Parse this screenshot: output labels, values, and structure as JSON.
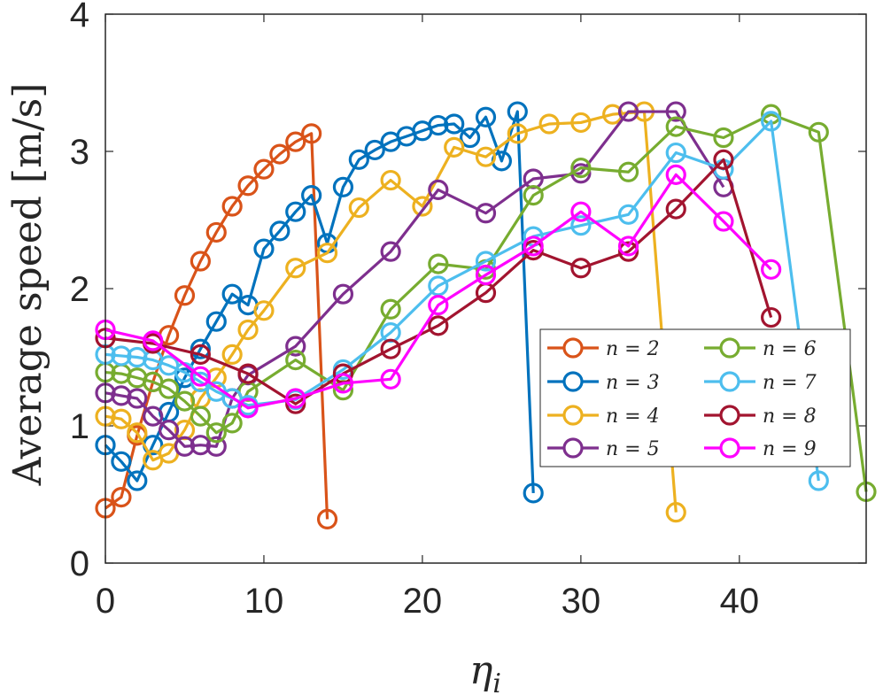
{
  "chart_data": {
    "type": "line",
    "title": "",
    "xlabel": "η",
    "xlabel_sub": "i",
    "ylabel": "Average speed [m/s]",
    "xlim": [
      0,
      48
    ],
    "ylim": [
      0,
      4
    ],
    "xticks": [
      "0",
      "10",
      "20",
      "30",
      "40"
    ],
    "yticks": [
      "0",
      "1",
      "2",
      "3",
      "4"
    ],
    "legend_position": "lower-right",
    "series": [
      {
        "name": "n = 2",
        "legend_label": "n = 2",
        "color": "#D95319",
        "x": [
          0,
          1,
          2,
          3,
          4,
          5,
          6,
          7,
          8,
          9,
          10,
          11,
          12,
          13,
          14
        ],
        "y": [
          0.4,
          0.48,
          0.93,
          1.32,
          1.66,
          1.95,
          2.2,
          2.41,
          2.6,
          2.75,
          2.87,
          2.98,
          3.07,
          3.13,
          0.32
        ]
      },
      {
        "name": "n = 3",
        "legend_label": "n = 3",
        "color": "#0072BD",
        "x": [
          0,
          1,
          2,
          3,
          4,
          5,
          6,
          7,
          8,
          9,
          10,
          11,
          12,
          13,
          14,
          15,
          16,
          17,
          18,
          19,
          20,
          21,
          22,
          23,
          24,
          25,
          26,
          27
        ],
        "y": [
          0.86,
          0.74,
          0.6,
          0.86,
          1.1,
          1.35,
          1.56,
          1.76,
          1.96,
          1.88,
          2.29,
          2.42,
          2.56,
          2.68,
          2.33,
          2.74,
          2.94,
          3.01,
          3.07,
          3.11,
          3.15,
          3.19,
          3.2,
          3.1,
          3.25,
          2.93,
          3.29,
          0.51
        ]
      },
      {
        "name": "n = 4",
        "legend_label": "n = 4",
        "color": "#EDB120",
        "x": [
          0,
          1,
          2,
          3,
          4,
          5,
          6,
          7,
          8,
          9,
          10,
          12,
          14,
          16,
          18,
          20,
          22,
          24,
          26,
          28,
          30,
          32,
          34,
          36
        ],
        "y": [
          1.07,
          1.05,
          0.95,
          0.75,
          0.8,
          0.97,
          1.2,
          1.35,
          1.52,
          1.7,
          1.84,
          2.15,
          2.26,
          2.59,
          2.79,
          2.6,
          3.03,
          2.96,
          3.13,
          3.2,
          3.21,
          3.27,
          3.29,
          0.37
        ]
      },
      {
        "name": "n = 5",
        "legend_label": "n = 5",
        "color": "#7E2F8E",
        "x": [
          0,
          1,
          2,
          3,
          4,
          5,
          6,
          7,
          8,
          9,
          12,
          15,
          18,
          21,
          24,
          27,
          30,
          33,
          36,
          39
        ],
        "y": [
          1.24,
          1.22,
          1.2,
          1.07,
          0.97,
          0.85,
          0.86,
          0.85,
          1.2,
          1.37,
          1.58,
          1.96,
          2.27,
          2.72,
          2.55,
          2.8,
          2.84,
          3.29,
          3.29,
          2.74
        ]
      },
      {
        "name": "n = 6",
        "legend_label": "n = 6",
        "color": "#77AC30",
        "x": [
          0,
          1,
          2,
          3,
          4,
          5,
          6,
          7,
          8,
          9,
          12,
          15,
          18,
          21,
          24,
          27,
          30,
          33,
          36,
          39,
          42,
          45,
          48
        ],
        "y": [
          1.39,
          1.38,
          1.35,
          1.32,
          1.27,
          1.18,
          1.07,
          0.95,
          1.02,
          1.25,
          1.48,
          1.26,
          1.85,
          2.18,
          2.14,
          2.68,
          2.88,
          2.85,
          3.18,
          3.1,
          3.27,
          3.14,
          0.52
        ]
      },
      {
        "name": "n = 7",
        "legend_label": "n = 7",
        "color": "#4DBEEE",
        "x": [
          0,
          1,
          2,
          3,
          4,
          5,
          6,
          7,
          8,
          9,
          12,
          15,
          18,
          21,
          24,
          27,
          30,
          33,
          36,
          39,
          42,
          45
        ],
        "y": [
          1.52,
          1.51,
          1.5,
          1.48,
          1.44,
          1.39,
          1.32,
          1.25,
          1.2,
          1.15,
          1.19,
          1.41,
          1.68,
          2.02,
          2.2,
          2.38,
          2.46,
          2.54,
          2.99,
          2.87,
          3.22,
          0.6
        ]
      },
      {
        "name": "n = 8",
        "legend_label": "n = 8",
        "color": "#A2142F",
        "x": [
          0,
          3,
          6,
          9,
          12,
          15,
          18,
          21,
          24,
          27,
          30,
          33,
          36,
          39,
          42
        ],
        "y": [
          1.64,
          1.6,
          1.52,
          1.38,
          1.16,
          1.38,
          1.56,
          1.73,
          1.97,
          2.28,
          2.15,
          2.27,
          2.58,
          2.94,
          1.79
        ]
      },
      {
        "name": "n = 9",
        "legend_label": "n = 9",
        "color": "#FF00FF",
        "x": [
          0,
          3,
          6,
          9,
          12,
          15,
          18,
          21,
          24,
          27,
          30,
          33,
          36,
          39,
          42
        ],
        "y": [
          1.7,
          1.62,
          1.36,
          1.13,
          1.2,
          1.31,
          1.34,
          1.88,
          2.1,
          2.31,
          2.56,
          2.31,
          2.83,
          2.49,
          2.14
        ]
      }
    ]
  }
}
